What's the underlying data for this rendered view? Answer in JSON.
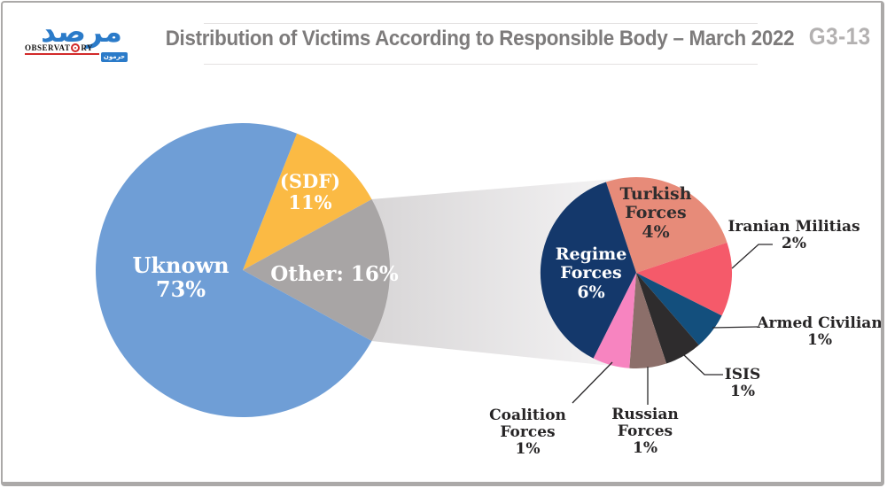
{
  "header": {
    "logo": {
      "arabic_wordmark": "مرصد",
      "latin_left": "OBSERVAT",
      "latin_right": "RY",
      "badge": "حرمون"
    },
    "title": "Distribution of Victims According to Responsible Body – March 2022",
    "figure_code": "G3-13"
  },
  "chart_data": {
    "type": "pie",
    "title": "Distribution of Victims According to Responsible Body – March 2022",
    "legend_position": "none",
    "main_pie": {
      "total_pct": 100,
      "slices": [
        {
          "label": "(SDF)",
          "pct": 11,
          "pct_label": "11%",
          "color": "#fbba44",
          "label_lines": [
            "(SDF)",
            "11%"
          ]
        },
        {
          "label": "Other",
          "pct": 16,
          "pct_label": "16%",
          "color": "#a8a5a5",
          "label_lines": [
            "Other: 16%"
          ]
        },
        {
          "label": "Uknown",
          "pct": 73,
          "pct_label": "73%",
          "color": "#6f9ed6",
          "label_lines": [
            "Uknown",
            "73%"
          ]
        }
      ]
    },
    "breakout_pie": {
      "breakout_of": "Other",
      "total_pct": 16,
      "slices": [
        {
          "label": "Turkish Forces",
          "pct": 4,
          "pct_label": "4%",
          "color": "#e78b79",
          "label_lines": [
            "Turkish",
            "Forces",
            "4%"
          ]
        },
        {
          "label": "Iranian Militias",
          "pct": 2,
          "pct_label": "2%",
          "color": "#f55a6a",
          "label_lines": [
            "Iranian Militias",
            "2%"
          ]
        },
        {
          "label": "Armed Civilian",
          "pct": 1,
          "pct_label": "1%",
          "color": "#134f7d",
          "label_lines": [
            "Armed Civilian",
            "1%"
          ]
        },
        {
          "label": "ISIS",
          "pct": 1,
          "pct_label": "1%",
          "color": "#2e2c2d",
          "label_lines": [
            "ISIS",
            "1%"
          ]
        },
        {
          "label": "Russian Forces",
          "pct": 1,
          "pct_label": "1%",
          "color": "#8c6f6a",
          "label_lines": [
            "Russian",
            "Forces",
            "1%"
          ]
        },
        {
          "label": "Coalition Forces",
          "pct": 1,
          "pct_label": "1%",
          "color": "#f784c0",
          "label_lines": [
            "Coalition Forces",
            "1%"
          ]
        },
        {
          "label": "Regime Forces",
          "pct": 6,
          "pct_label": "6%",
          "color": "#14386b",
          "label_lines": [
            "Regime",
            "Forces",
            "6%"
          ]
        }
      ]
    }
  }
}
